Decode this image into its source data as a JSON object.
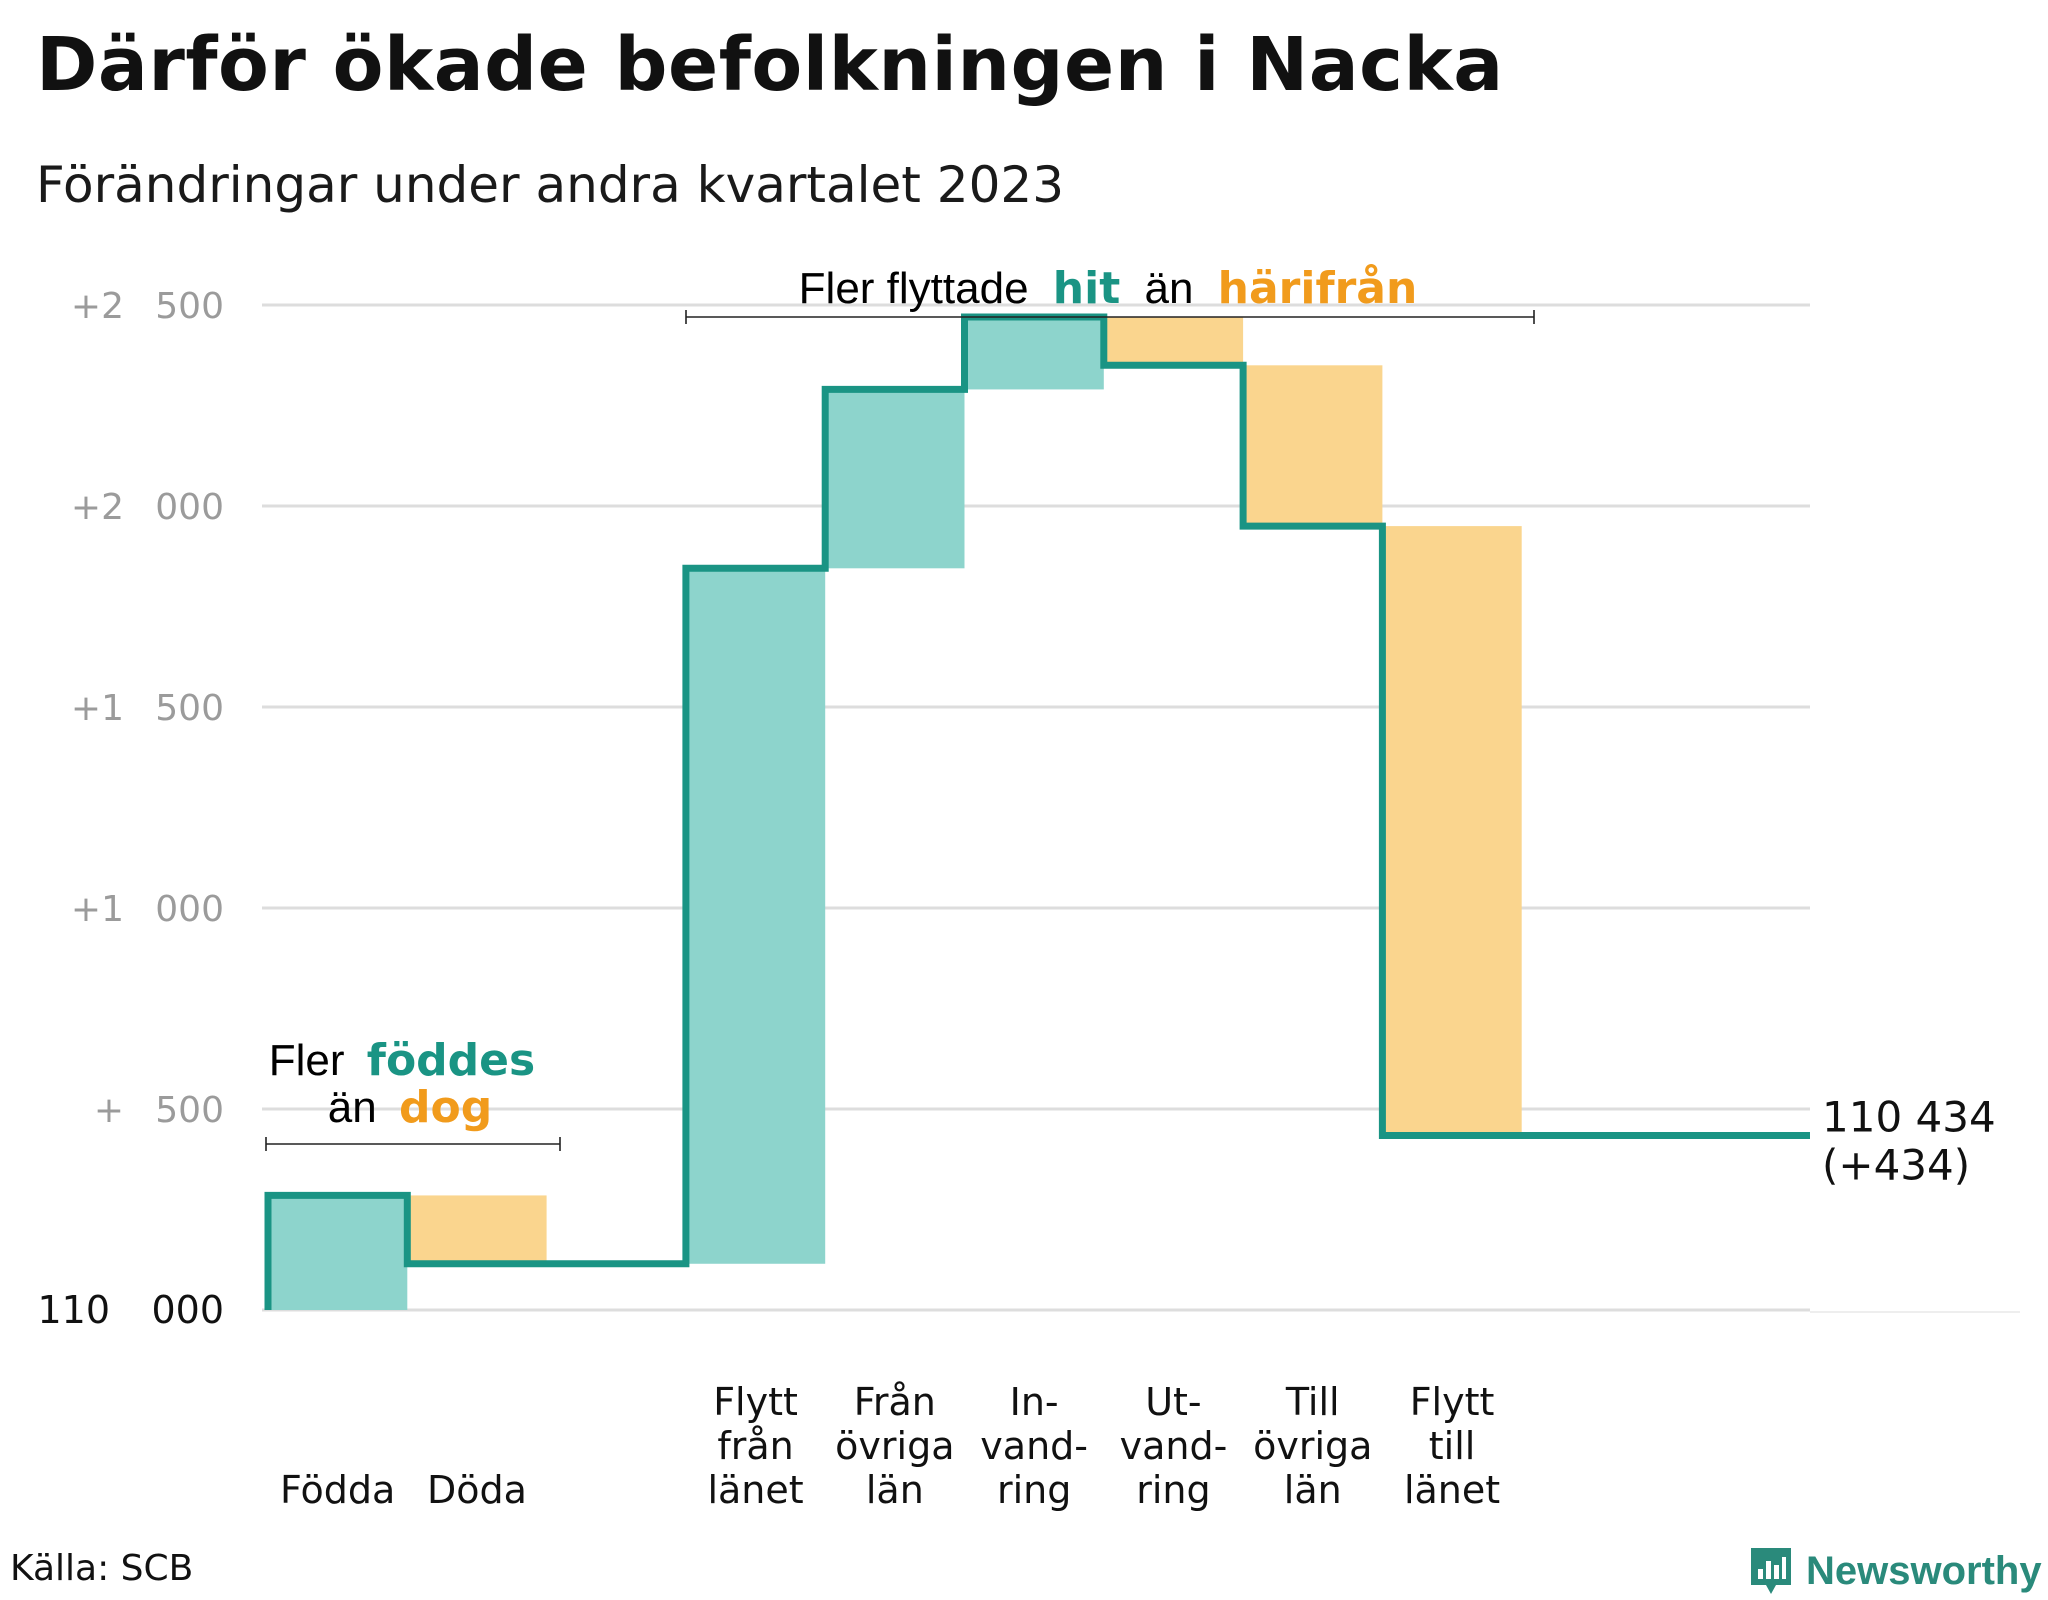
{
  "title": "Därför ökade befolkningen i Nacka",
  "subtitle": "Förändringar under andra kvartalet 2023",
  "source": "Källa: SCB",
  "brand": "Newsworthy",
  "colors": {
    "increase": "#8dd4cc",
    "decrease": "#fad58e",
    "line": "#1a9484",
    "grid": "#dddddd",
    "tick": "#9b9b9b",
    "teal_text": "#1a9484",
    "orange_text": "#f19b1c",
    "brand": "#2a8a7b"
  },
  "annotations": {
    "natural": {
      "line1_prefix": "Fler",
      "line1_highlight": "föddes",
      "line2_prefix": "än",
      "line2_highlight": "dog"
    },
    "migration": {
      "prefix": "Fler flyttade",
      "highlight1": "hit",
      "middle": "än",
      "highlight2": "härifrån"
    }
  },
  "chart_data": {
    "type": "waterfall",
    "title": "Därför ökade befolkningen i Nacka",
    "subtitle": "Förändringar under andra kvartalet 2023",
    "base": 110000,
    "ylim": [
      0,
      2500
    ],
    "y_ticks": [
      {
        "value": 0,
        "label": "110 000"
      },
      {
        "value": 500,
        "label": "+ 500"
      },
      {
        "value": 1000,
        "label": "+1 000"
      },
      {
        "value": 1500,
        "label": "+1 500"
      },
      {
        "value": 2000,
        "label": "+2 000"
      },
      {
        "value": 2500,
        "label": "+2 500"
      }
    ],
    "grid": true,
    "steps": [
      {
        "label": [
          "Födda"
        ],
        "change": 285
      },
      {
        "label": [
          "Döda"
        ],
        "change": -170
      },
      {
        "label": [],
        "change": 0
      },
      {
        "label": [
          "Flytt",
          "från",
          "länet"
        ],
        "change": 1730
      },
      {
        "label": [
          "Från",
          "övriga",
          "län"
        ],
        "change": 445
      },
      {
        "label": [
          "In-",
          "vand-",
          "ring"
        ],
        "change": 180
      },
      {
        "label": [
          "Ut-",
          "vand-",
          "ring"
        ],
        "change": -120
      },
      {
        "label": [
          "Till",
          "övriga",
          "län"
        ],
        "change": -400
      },
      {
        "label": [
          "Flytt",
          "till",
          "länet"
        ],
        "change": -1516
      }
    ],
    "end_value": 110434,
    "end_labels": [
      "110 434",
      "(+434)"
    ]
  }
}
